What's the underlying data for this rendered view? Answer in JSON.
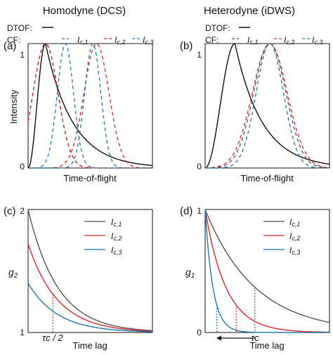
{
  "colors": {
    "black": "#111111",
    "red": "#d62728",
    "blue": "#1f77b4",
    "gray": "#555555"
  },
  "titles": {
    "left": "Homodyne (DCS)",
    "right": "Heterodyne (iDWS)"
  },
  "legend_text": {
    "dtof": "DTOF:",
    "cf": "CF:",
    "ic1_base": "I",
    "ic1_sub": "c,1",
    "ic2_base": "I",
    "ic2_sub": "c,2",
    "ic3_base": "I",
    "ic3_sub": "c,3"
  },
  "chart_data": [
    {
      "panel": "(a)",
      "type": "line",
      "xlabel": "Time-of-flight",
      "ylabel": "Intensity",
      "yticks": [
        "0",
        "1"
      ],
      "ylim": [
        0,
        1.0
      ],
      "x": [
        0,
        1
      ],
      "reference_line": {
        "y": 1.0,
        "style": "dashed",
        "color": "gray"
      },
      "series": [
        {
          "name": "DTOF",
          "kind": "dtof",
          "peak_x": 0.14,
          "style": "solid",
          "color": "black"
        },
        {
          "name": "I_c,1",
          "kind": "gauss",
          "center": 0.14,
          "width": 0.1,
          "style": "dashed",
          "color": "gray"
        },
        {
          "name": "I_c,2",
          "kind": "gauss",
          "center": 0.14,
          "width": 0.1,
          "style": "dashed",
          "color": "red"
        },
        {
          "name": "I_c,2",
          "kind": "gauss",
          "center": 0.55,
          "width": 0.1,
          "style": "dashed",
          "color": "red"
        },
        {
          "name": "I_c,3",
          "kind": "gauss",
          "center": 0.3,
          "width": 0.065,
          "style": "dashed",
          "color": "blue"
        },
        {
          "name": "I_c,3",
          "kind": "gauss",
          "center": 0.52,
          "width": 0.065,
          "style": "dashed",
          "color": "blue"
        }
      ]
    },
    {
      "panel": "(b)",
      "type": "line",
      "xlabel": "Time-of-flight",
      "ylabel": "",
      "yticks": [
        "0",
        "1"
      ],
      "ylim": [
        0,
        1.0
      ],
      "x": [
        0,
        1
      ],
      "reference_line": {
        "y": 1.0,
        "style": "dashed",
        "color": "gray"
      },
      "series": [
        {
          "name": "DTOF",
          "kind": "dtof",
          "peak_x": 0.24,
          "style": "solid",
          "color": "black"
        },
        {
          "name": "I_c,1",
          "kind": "gauss",
          "center": 0.52,
          "width": 0.13,
          "style": "dashed",
          "color": "gray"
        },
        {
          "name": "I_c,2",
          "kind": "gauss",
          "center": 0.52,
          "width": 0.14,
          "style": "dashed",
          "color": "red"
        },
        {
          "name": "I_c,3",
          "kind": "gauss",
          "center": 0.52,
          "width": 0.11,
          "style": "dashed",
          "color": "blue"
        }
      ]
    },
    {
      "panel": "(c)",
      "type": "line",
      "xlabel": "Time lag",
      "ylabel": "g2",
      "yticks": [
        "1",
        "2"
      ],
      "ylim": [
        1,
        2
      ],
      "x": [
        0,
        1
      ],
      "series": [
        {
          "name": "I_c,1",
          "start": 2.0,
          "decay": 4.2,
          "color": "gray"
        },
        {
          "name": "I_c,2",
          "start": 1.72,
          "decay": 4.2,
          "color": "red"
        },
        {
          "name": "I_c,3",
          "start": 1.4,
          "decay": 4.2,
          "color": "blue"
        }
      ],
      "markers": [
        {
          "x": 0.2,
          "style": "dotted",
          "color": "red"
        }
      ],
      "annotation": {
        "text": "τc / 2",
        "x": 0.2
      }
    },
    {
      "panel": "(d)",
      "type": "line",
      "xlabel": "Time lag",
      "ylabel": "g1",
      "yticks": [
        "0",
        "1"
      ],
      "ylim": [
        0,
        1
      ],
      "x": [
        0,
        1
      ],
      "series": [
        {
          "name": "I_c,1",
          "start": 1.0,
          "decay": 2.5,
          "color": "gray"
        },
        {
          "name": "I_c,2",
          "start": 1.0,
          "decay": 6.0,
          "color": "red"
        },
        {
          "name": "I_c,3",
          "start": 1.0,
          "decay": 16.0,
          "color": "blue"
        }
      ],
      "markers": [
        {
          "x": 0.0938,
          "style": "dotted",
          "color": "blue"
        },
        {
          "x": 0.25,
          "style": "dotted",
          "color": "red"
        },
        {
          "x": 0.4,
          "style": "dotted",
          "color": "gray"
        }
      ],
      "annotation": {
        "text": "τc",
        "x": 0.4
      },
      "arrow": {
        "from_x": 0.4,
        "to_x": 0.09,
        "direction": "left"
      }
    }
  ]
}
